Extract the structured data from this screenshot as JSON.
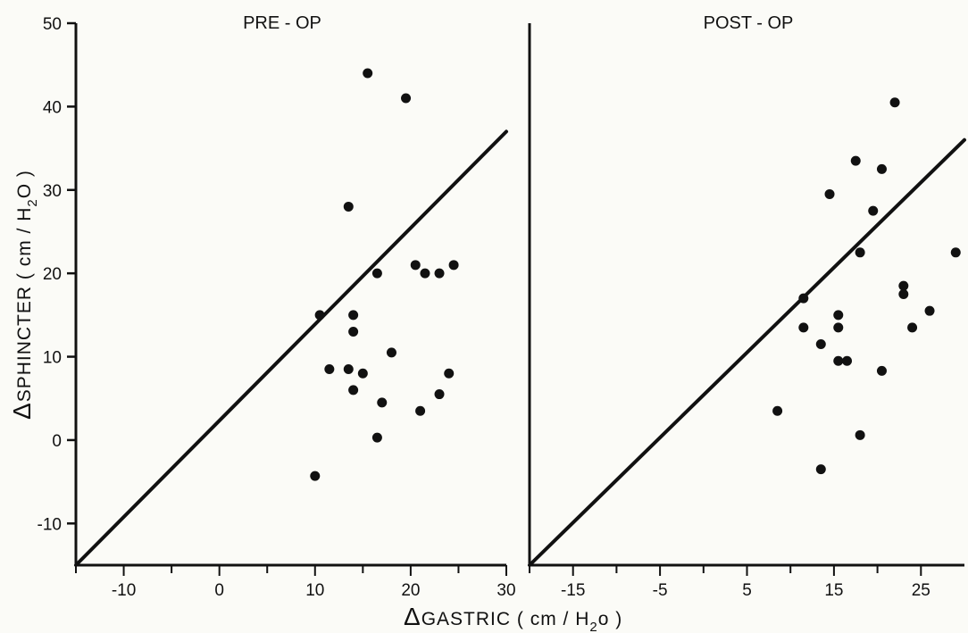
{
  "chart_data": [
    {
      "type": "scatter",
      "title": "PRE - OP",
      "ylabel": "SPHINCTER ( cm / H2O )",
      "xlabel": "GASTRIC ( cm / H2O )",
      "xlim": [
        -15,
        30
      ],
      "ylim": [
        -15,
        50
      ],
      "x_ticks": [
        -10,
        0,
        10,
        20,
        30
      ],
      "y_ticks": [
        -10,
        0,
        10,
        20,
        30,
        40,
        50
      ],
      "line": {
        "x": [
          -15,
          30
        ],
        "y": [
          -15,
          37
        ]
      },
      "points": [
        {
          "x": 15.5,
          "y": 44
        },
        {
          "x": 19.5,
          "y": 41
        },
        {
          "x": 13.5,
          "y": 28
        },
        {
          "x": 16.5,
          "y": 20
        },
        {
          "x": 20.5,
          "y": 21
        },
        {
          "x": 21.5,
          "y": 20
        },
        {
          "x": 23.0,
          "y": 20
        },
        {
          "x": 24.5,
          "y": 21
        },
        {
          "x": 10.5,
          "y": 15
        },
        {
          "x": 14.0,
          "y": 15
        },
        {
          "x": 14.0,
          "y": 13
        },
        {
          "x": 18.0,
          "y": 10.5
        },
        {
          "x": 11.5,
          "y": 8.5
        },
        {
          "x": 13.5,
          "y": 8.5
        },
        {
          "x": 15.0,
          "y": 8
        },
        {
          "x": 24.0,
          "y": 8
        },
        {
          "x": 14.0,
          "y": 6
        },
        {
          "x": 17.0,
          "y": 4.5
        },
        {
          "x": 23.0,
          "y": 5.5
        },
        {
          "x": 21.0,
          "y": 3.5
        },
        {
          "x": 16.5,
          "y": 0.3
        },
        {
          "x": 10.0,
          "y": -4.3
        }
      ]
    },
    {
      "type": "scatter",
      "title": "POST - OP",
      "ylabel": "",
      "xlabel": "GASTRIC ( cm / H2O )",
      "xlim": [
        -20,
        30
      ],
      "ylim": [
        -15,
        50
      ],
      "x_ticks": [
        -15,
        -5,
        5,
        15,
        25
      ],
      "minor_x_ticks": [
        -20,
        -10,
        0,
        10,
        20
      ],
      "y_ticks": [],
      "line": {
        "x": [
          -20,
          30
        ],
        "y": [
          -15,
          36
        ]
      },
      "points": [
        {
          "x": 22.0,
          "y": 40.5
        },
        {
          "x": 17.5,
          "y": 33.5
        },
        {
          "x": 20.5,
          "y": 32.5
        },
        {
          "x": 14.5,
          "y": 29.5
        },
        {
          "x": 19.5,
          "y": 27.5
        },
        {
          "x": 18.0,
          "y": 22.5
        },
        {
          "x": 29.0,
          "y": 22.5
        },
        {
          "x": 23.0,
          "y": 18.5
        },
        {
          "x": 23.0,
          "y": 17.5
        },
        {
          "x": 11.5,
          "y": 17
        },
        {
          "x": 15.5,
          "y": 15
        },
        {
          "x": 26.0,
          "y": 15.5
        },
        {
          "x": 11.5,
          "y": 13.5
        },
        {
          "x": 15.5,
          "y": 13.5
        },
        {
          "x": 24.0,
          "y": 13.5
        },
        {
          "x": 13.5,
          "y": 11.5
        },
        {
          "x": 15.5,
          "y": 9.5
        },
        {
          "x": 16.5,
          "y": 9.5
        },
        {
          "x": 20.5,
          "y": 8.3
        },
        {
          "x": 8.5,
          "y": 3.5
        },
        {
          "x": 18.0,
          "y": 0.6
        },
        {
          "x": 13.5,
          "y": -3.5
        }
      ]
    }
  ],
  "labels": {
    "delta": "Δ",
    "y_axis": "SPHINCTER ( cm / H",
    "y_axis_sub": "2",
    "y_axis_end": "O )",
    "x_axis": "GASTRIC ( cm / H",
    "x_axis_sub": "2",
    "x_axis_end": "o )"
  },
  "colors": {
    "ink": "#111111",
    "paper": "#fbfbf7"
  }
}
